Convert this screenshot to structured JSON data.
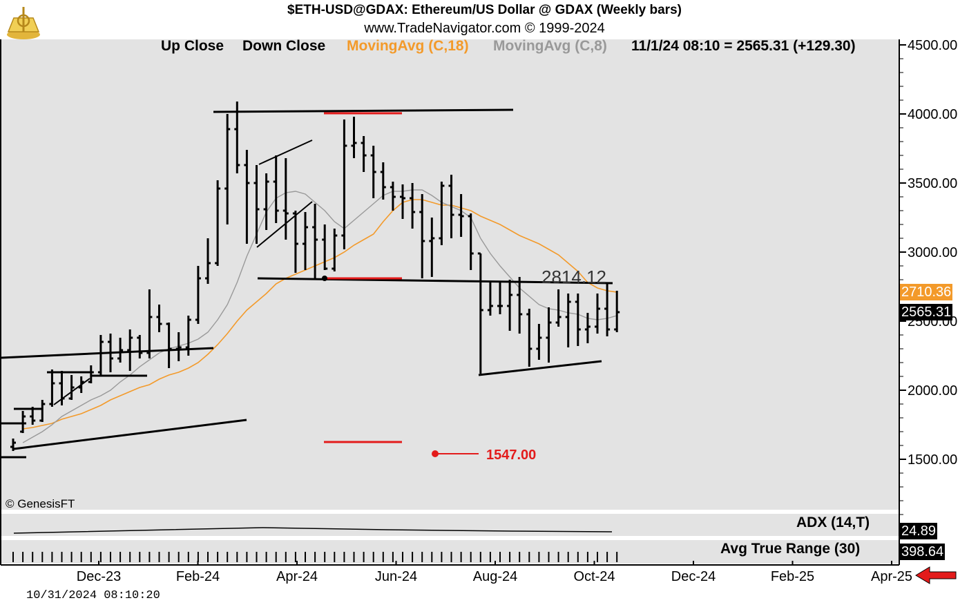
{
  "header": {
    "title": "$ETH-USD@GDAX:  Ethereum/US Dollar @ GDAX  (Weekly bars)",
    "subtitle": "www.TradeNavigator.com © 1999-2024"
  },
  "legend": {
    "up_close": "Up Close",
    "down_close": "Down Close",
    "ma18": "MovingAvg (C,18)",
    "ma8": "MovingAvg (C,8)",
    "last": "11/1/24 08:10 = 2565.31 (+129.30)"
  },
  "colors": {
    "panel_bg": "#e3e3e3",
    "ma18": "#f39a2a",
    "ma8": "#999999",
    "price_bars": "#000000",
    "red_marks": "#e31b1b"
  },
  "annotations": {
    "level_label": "2814.12",
    "target_label": "1547.00"
  },
  "price_tags": {
    "ma18": "2710.36",
    "last": "2565.31"
  },
  "indicators": {
    "adx_label": "ADX (14,T)",
    "adx_value": "24.89",
    "atr_label": "Avg True Range (30)",
    "atr_value": "398.64"
  },
  "watermark": "© GenesisFT",
  "timestamp": "10/31/2024 08:10:20",
  "chart_data": {
    "type": "bar",
    "ylim": [
      1000,
      4500
    ],
    "y_ticks": [
      "4500.00",
      "4000.00",
      "3500.00",
      "3000.00",
      "2500.00",
      "2000.00",
      "1500.00"
    ],
    "x_ticks": [
      "Dec-23",
      "Feb-24",
      "Apr-24",
      "Jun-24",
      "Aug-24",
      "Oct-24",
      "Dec-24",
      "Feb-25",
      "Apr-25"
    ],
    "ohlc": [
      {
        "o": 1590,
        "h": 1650,
        "l": 1560,
        "c": 1620
      },
      {
        "o": 1700,
        "h": 1850,
        "l": 1690,
        "c": 1810
      },
      {
        "o": 1810,
        "h": 1880,
        "l": 1750,
        "c": 1780
      },
      {
        "o": 1780,
        "h": 1930,
        "l": 1770,
        "c": 1900
      },
      {
        "o": 1900,
        "h": 2150,
        "l": 1880,
        "c": 2050
      },
      {
        "o": 2050,
        "h": 2140,
        "l": 1890,
        "c": 1940
      },
      {
        "o": 1940,
        "h": 2110,
        "l": 1930,
        "c": 2020
      },
      {
        "o": 2020,
        "h": 2100,
        "l": 1980,
        "c": 2060
      },
      {
        "o": 2060,
        "h": 2180,
        "l": 2050,
        "c": 2130
      },
      {
        "o": 2130,
        "h": 2400,
        "l": 2110,
        "c": 2350
      },
      {
        "o": 2350,
        "h": 2410,
        "l": 2130,
        "c": 2230
      },
      {
        "o": 2230,
        "h": 2380,
        "l": 2200,
        "c": 2290
      },
      {
        "o": 2290,
        "h": 2440,
        "l": 2140,
        "c": 2380
      },
      {
        "o": 2380,
        "h": 2400,
        "l": 2230,
        "c": 2270
      },
      {
        "o": 2270,
        "h": 2730,
        "l": 2230,
        "c": 2530
      },
      {
        "o": 2530,
        "h": 2620,
        "l": 2420,
        "c": 2480
      },
      {
        "o": 2480,
        "h": 2490,
        "l": 2160,
        "c": 2300
      },
      {
        "o": 2300,
        "h": 2420,
        "l": 2210,
        "c": 2310
      },
      {
        "o": 2310,
        "h": 2540,
        "l": 2250,
        "c": 2510
      },
      {
        "o": 2510,
        "h": 2900,
        "l": 2480,
        "c": 2810
      },
      {
        "o": 2810,
        "h": 3100,
        "l": 2770,
        "c": 2920
      },
      {
        "o": 2920,
        "h": 3520,
        "l": 2900,
        "c": 3460
      },
      {
        "o": 3460,
        "h": 4000,
        "l": 3200,
        "c": 3890
      },
      {
        "o": 3890,
        "h": 4090,
        "l": 3570,
        "c": 3630
      },
      {
        "o": 3630,
        "h": 3740,
        "l": 3060,
        "c": 3500
      },
      {
        "o": 3500,
        "h": 3630,
        "l": 3060,
        "c": 3310
      },
      {
        "o": 3310,
        "h": 3570,
        "l": 3160,
        "c": 3510
      },
      {
        "o": 3510,
        "h": 3700,
        "l": 3210,
        "c": 3300
      },
      {
        "o": 3300,
        "h": 3680,
        "l": 3090,
        "c": 3280
      },
      {
        "o": 3280,
        "h": 3300,
        "l": 2850,
        "c": 3060
      },
      {
        "o": 3060,
        "h": 3290,
        "l": 2870,
        "c": 3180
      },
      {
        "o": 3180,
        "h": 3350,
        "l": 2810,
        "c": 3090
      },
      {
        "o": 3090,
        "h": 3200,
        "l": 2870,
        "c": 2880
      },
      {
        "o": 2880,
        "h": 3170,
        "l": 2860,
        "c": 3120
      },
      {
        "o": 3120,
        "h": 3960,
        "l": 3020,
        "c": 3770
      },
      {
        "o": 3770,
        "h": 3980,
        "l": 3680,
        "c": 3790
      },
      {
        "o": 3790,
        "h": 3840,
        "l": 3580,
        "c": 3700
      },
      {
        "o": 3700,
        "h": 3770,
        "l": 3390,
        "c": 3580
      },
      {
        "o": 3580,
        "h": 3650,
        "l": 3380,
        "c": 3470
      },
      {
        "o": 3470,
        "h": 3510,
        "l": 3300,
        "c": 3400
      },
      {
        "o": 3400,
        "h": 3490,
        "l": 3240,
        "c": 3390
      },
      {
        "o": 3390,
        "h": 3500,
        "l": 3170,
        "c": 3290
      },
      {
        "o": 3290,
        "h": 3420,
        "l": 2810,
        "c": 3080
      },
      {
        "o": 3080,
        "h": 3250,
        "l": 2820,
        "c": 3100
      },
      {
        "o": 3100,
        "h": 3510,
        "l": 3050,
        "c": 3480
      },
      {
        "o": 3480,
        "h": 3560,
        "l": 3100,
        "c": 3270
      },
      {
        "o": 3270,
        "h": 3420,
        "l": 3110,
        "c": 3260
      },
      {
        "o": 3260,
        "h": 3280,
        "l": 2870,
        "c": 2990
      },
      {
        "o": 2990,
        "h": 2990,
        "l": 2120,
        "c": 2580
      },
      {
        "o": 2580,
        "h": 2780,
        "l": 2540,
        "c": 2610
      },
      {
        "o": 2610,
        "h": 2780,
        "l": 2550,
        "c": 2610
      },
      {
        "o": 2610,
        "h": 2800,
        "l": 2430,
        "c": 2690
      },
      {
        "o": 2690,
        "h": 2820,
        "l": 2410,
        "c": 2550
      },
      {
        "o": 2550,
        "h": 2590,
        "l": 2170,
        "c": 2300
      },
      {
        "o": 2300,
        "h": 2480,
        "l": 2220,
        "c": 2380
      },
      {
        "o": 2380,
        "h": 2600,
        "l": 2200,
        "c": 2490
      },
      {
        "o": 2490,
        "h": 2730,
        "l": 2460,
        "c": 2530
      },
      {
        "o": 2530,
        "h": 2700,
        "l": 2310,
        "c": 2640
      },
      {
        "o": 2640,
        "h": 2700,
        "l": 2320,
        "c": 2440
      },
      {
        "o": 2440,
        "h": 2560,
        "l": 2340,
        "c": 2460
      },
      {
        "o": 2460,
        "h": 2700,
        "l": 2410,
        "c": 2590
      },
      {
        "o": 2590,
        "h": 2770,
        "l": 2390,
        "c": 2440
      },
      {
        "o": 2440,
        "h": 2720,
        "l": 2420,
        "c": 2565
      }
    ],
    "ma18": [
      1720,
      1730,
      1745,
      1760,
      1790,
      1810,
      1830,
      1860,
      1890,
      1930,
      1960,
      1990,
      2020,
      2040,
      2080,
      2110,
      2130,
      2160,
      2200,
      2260,
      2330,
      2410,
      2500,
      2580,
      2640,
      2700,
      2770,
      2810,
      2840,
      2870,
      2900,
      2930,
      2960,
      3000,
      3050,
      3090,
      3130,
      3220,
      3300,
      3360,
      3380,
      3380,
      3360,
      3340,
      3340,
      3320,
      3300,
      3260,
      3230,
      3200,
      3160,
      3120,
      3090,
      3060,
      3020,
      2980,
      2920,
      2860,
      2780,
      2740,
      2720,
      2710
    ],
    "ma8": [
      1620,
      1660,
      1700,
      1750,
      1810,
      1850,
      1890,
      1930,
      1960,
      2000,
      2060,
      2110,
      2170,
      2220,
      2270,
      2300,
      2320,
      2340,
      2370,
      2420,
      2510,
      2620,
      2780,
      2970,
      3130,
      3290,
      3390,
      3430,
      3440,
      3420,
      3360,
      3300,
      3220,
      3170,
      3230,
      3290,
      3350,
      3410,
      3440,
      3440,
      3450,
      3450,
      3410,
      3360,
      3330,
      3300,
      3250,
      3100,
      2990,
      2900,
      2820,
      2740,
      2680,
      2620,
      2590,
      2580,
      2560,
      2550,
      2520,
      2510,
      2520,
      2540
    ]
  }
}
